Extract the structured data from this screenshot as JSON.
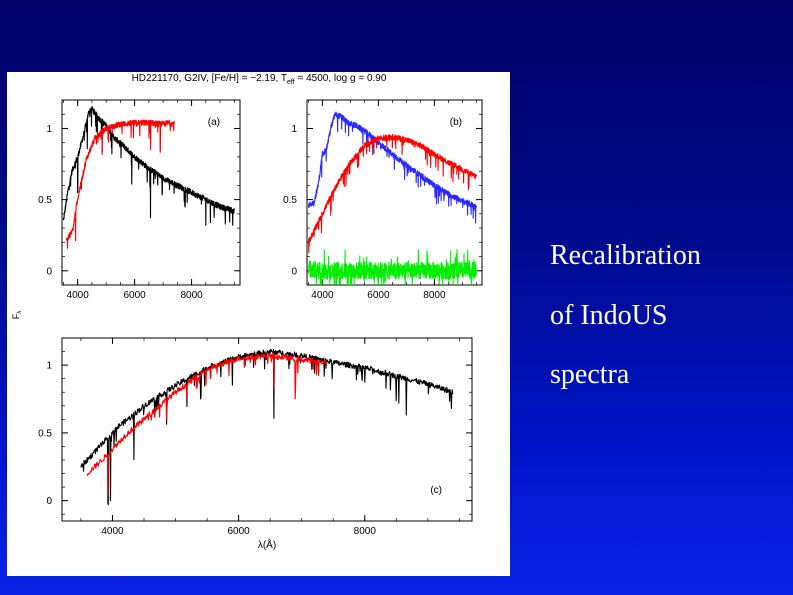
{
  "slide": {
    "lines": [
      "Recalibration",
      "of IndoUS",
      "spectra"
    ],
    "colors": {
      "background_top": "#000066",
      "background_bottom": "#0a22e6",
      "text": "#ffffff"
    }
  },
  "figure": {
    "title_prefix": "HD221170, G2IV, [Fe/H] = −2.19, T",
    "title_sub": "eff",
    "title_suffix": " = 4500, log g = 0.90",
    "ylabel": "F",
    "ylabel_sub": "λ"
  },
  "chart_data": [
    {
      "id": "a",
      "type": "line",
      "panel_label": "(a)",
      "xlim": [
        3450,
        9700
      ],
      "ylim": [
        -0.1,
        1.2
      ],
      "xticks": [
        4000,
        6000,
        8000
      ],
      "yticks": [
        0,
        0.5,
        1
      ],
      "ytick_labels": [
        "0",
        "0.5",
        "1"
      ],
      "series": [
        {
          "color": "#000000",
          "x": [
            3500,
            3650,
            3800,
            4000,
            4200,
            4400,
            4500,
            4700,
            5000,
            5300,
            5600,
            6000,
            6500,
            7000,
            7500,
            8000,
            8500,
            9000,
            9500
          ],
          "y": [
            0.35,
            0.55,
            0.7,
            0.8,
            0.95,
            1.12,
            1.14,
            1.08,
            1.02,
            0.93,
            0.88,
            0.8,
            0.72,
            0.65,
            0.6,
            0.55,
            0.5,
            0.45,
            0.42
          ],
          "absorption": [
            [
              4000,
              0.25
            ],
            [
              4340,
              0.2
            ],
            [
              4860,
              0.2
            ],
            [
              5200,
              0.12
            ],
            [
              5900,
              0.2
            ],
            [
              6560,
              0.35
            ],
            [
              8500,
              0.14
            ],
            [
              8660,
              0.16
            ]
          ]
        },
        {
          "color": "#ff0000",
          "x": [
            3600,
            3700,
            3850,
            3950,
            4100,
            4300,
            4600,
            5000,
            5500,
            6000,
            6500,
            7000,
            7200,
            7400
          ],
          "y": [
            0.22,
            0.24,
            0.3,
            0.45,
            0.6,
            0.78,
            0.93,
            1.0,
            1.03,
            1.04,
            1.04,
            1.03,
            1.04,
            1.03
          ],
          "absorption": [
            [
              3930,
              0.2
            ],
            [
              4860,
              0.15
            ],
            [
              6560,
              0.2
            ],
            [
              6900,
              0.18
            ],
            [
              7400,
              0.3
            ]
          ]
        }
      ]
    },
    {
      "id": "b",
      "type": "line",
      "panel_label": "(b)",
      "xlim": [
        3450,
        9700
      ],
      "ylim": [
        -0.1,
        1.2
      ],
      "xticks": [
        4000,
        6000,
        8000
      ],
      "yticks": [
        0,
        0.5,
        1
      ],
      "ytick_labels": [
        "0",
        "0.5",
        "1"
      ],
      "series": [
        {
          "color": "#2828ff",
          "x": [
            3500,
            3700,
            3850,
            4000,
            4150,
            4300,
            4450,
            4700,
            4900,
            5200,
            5600,
            6000,
            6500,
            7000,
            7500,
            8000,
            8500,
            9000,
            9500
          ],
          "y": [
            0.46,
            0.48,
            0.6,
            0.82,
            0.86,
            1.0,
            1.1,
            1.08,
            1.04,
            1.02,
            0.97,
            0.9,
            0.82,
            0.74,
            0.67,
            0.6,
            0.54,
            0.49,
            0.45
          ]
        },
        {
          "color": "#ff0000",
          "x": [
            3500,
            4000,
            4500,
            5000,
            5500,
            6000,
            6500,
            7000,
            7500,
            8000,
            8500,
            9000,
            9500
          ],
          "y": [
            0.2,
            0.4,
            0.6,
            0.76,
            0.88,
            0.93,
            0.94,
            0.92,
            0.88,
            0.82,
            0.76,
            0.71,
            0.66
          ]
        },
        {
          "color": "#00ee00",
          "x": [
            3500,
            9500
          ],
          "y": [
            0,
            0
          ],
          "noise": 0.06
        }
      ]
    },
    {
      "id": "c",
      "type": "line",
      "panel_label": "(c)",
      "xlim": [
        3200,
        9700
      ],
      "ylim": [
        -0.15,
        1.2
      ],
      "xticks": [
        4000,
        6000,
        8000
      ],
      "yticks": [
        0,
        0.5,
        1
      ],
      "ytick_labels": [
        "0",
        "0.5",
        "1"
      ],
      "xlabel": "λ(Å)",
      "series": [
        {
          "color": "#000000",
          "x": [
            3500,
            3700,
            3900,
            4100,
            4300,
            4500,
            5000,
            5500,
            6000,
            6500,
            7000,
            7500,
            8000,
            8500,
            9000,
            9400
          ],
          "y": [
            0.25,
            0.35,
            0.45,
            0.55,
            0.62,
            0.7,
            0.85,
            0.98,
            1.06,
            1.1,
            1.07,
            1.02,
            0.98,
            0.92,
            0.86,
            0.8
          ],
          "absorption": [
            [
              3930,
              0.5
            ],
            [
              3970,
              0.5
            ],
            [
              4340,
              0.2
            ],
            [
              4860,
              0.25
            ],
            [
              5180,
              0.2
            ],
            [
              5400,
              0.2
            ],
            [
              5900,
              0.1
            ],
            [
              6560,
              0.5
            ],
            [
              8500,
              0.2
            ],
            [
              8540,
              0.18
            ],
            [
              8660,
              0.25
            ]
          ]
        },
        {
          "color": "#ff0000",
          "x": [
            3600,
            3900,
            4200,
            4500,
            5000,
            5500,
            6000,
            6500,
            7000,
            7400
          ],
          "y": [
            0.2,
            0.33,
            0.48,
            0.6,
            0.8,
            0.97,
            1.05,
            1.07,
            1.04,
            1.02
          ],
          "absorption": [
            [
              3930,
              0.3
            ],
            [
              4860,
              0.15
            ],
            [
              6560,
              0.25
            ],
            [
              6900,
              0.2
            ],
            [
              7400,
              0.3
            ]
          ]
        }
      ]
    }
  ]
}
